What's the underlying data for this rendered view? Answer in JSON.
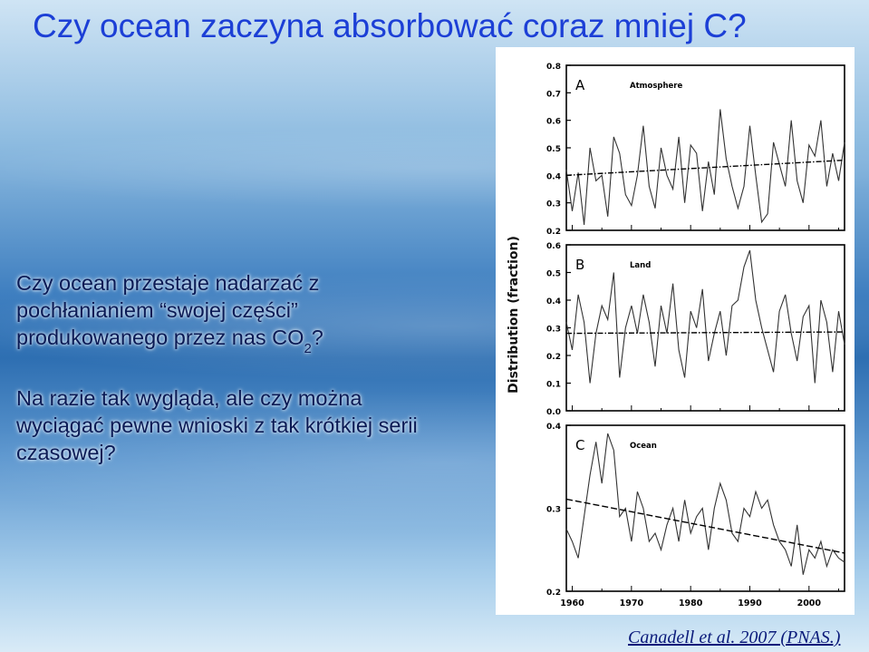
{
  "slide": {
    "title": "Czy ocean zaczyna absorbować coraz mniej C?",
    "paragraph1": {
      "text": "Czy ocean przestaje nadarzać z pochłanianiem “swojej części” produkowanego przez nas CO",
      "subscript": "2",
      "tail": "?"
    },
    "paragraph2": "Na razie tak wygląda, ale czy można wyciągać pewne wnioski z tak krótkiej serii czasowej?",
    "citation": "Canadell et al. 2007 (PNAS.)"
  },
  "chart_data": {
    "type": "line",
    "ylabel": "Distribution (fraction)",
    "x_ticks": [
      1960,
      1970,
      1980,
      1990,
      2000
    ],
    "x_range": [
      1959,
      2006
    ],
    "years": [
      1959,
      1960,
      1961,
      1962,
      1963,
      1964,
      1965,
      1966,
      1967,
      1968,
      1969,
      1970,
      1971,
      1972,
      1973,
      1974,
      1975,
      1976,
      1977,
      1978,
      1979,
      1980,
      1981,
      1982,
      1983,
      1984,
      1985,
      1986,
      1987,
      1988,
      1989,
      1990,
      1991,
      1992,
      1993,
      1994,
      1995,
      1996,
      1997,
      1998,
      1999,
      2000,
      2001,
      2002,
      2003,
      2004,
      2005,
      2006
    ],
    "panels": [
      {
        "letter": "A",
        "name": "Atmosphere",
        "ylim": [
          0.2,
          0.8
        ],
        "y_ticks": [
          0.2,
          0.3,
          0.4,
          0.5,
          0.6,
          0.7,
          0.8
        ],
        "y_tick_labels": [
          "0.2",
          "0.3",
          "0.4",
          "0.5",
          "0.6",
          "0.7",
          "0.8"
        ],
        "values": [
          0.42,
          0.27,
          0.41,
          0.22,
          0.5,
          0.38,
          0.4,
          0.25,
          0.54,
          0.48,
          0.33,
          0.29,
          0.4,
          0.58,
          0.36,
          0.28,
          0.5,
          0.4,
          0.35,
          0.54,
          0.3,
          0.51,
          0.48,
          0.27,
          0.45,
          0.33,
          0.64,
          0.46,
          0.36,
          0.28,
          0.36,
          0.58,
          0.4,
          0.23,
          0.26,
          0.52,
          0.44,
          0.36,
          0.6,
          0.38,
          0.3,
          0.51,
          0.47,
          0.6,
          0.36,
          0.48,
          0.38,
          0.52
        ],
        "trend": [
          0.4,
          0.455
        ]
      },
      {
        "letter": "B",
        "name": "Land",
        "ylim": [
          0.0,
          0.6
        ],
        "y_ticks": [
          0.0,
          0.1,
          0.2,
          0.3,
          0.4,
          0.5,
          0.6
        ],
        "y_tick_labels": [
          "0.0",
          "0.1",
          "0.2",
          "0.3",
          "0.4",
          "0.5",
          "0.6"
        ],
        "values": [
          0.32,
          0.22,
          0.42,
          0.32,
          0.1,
          0.28,
          0.38,
          0.33,
          0.5,
          0.12,
          0.3,
          0.38,
          0.28,
          0.42,
          0.32,
          0.16,
          0.38,
          0.28,
          0.46,
          0.22,
          0.12,
          0.36,
          0.3,
          0.44,
          0.18,
          0.28,
          0.36,
          0.2,
          0.38,
          0.4,
          0.52,
          0.58,
          0.4,
          0.3,
          0.22,
          0.14,
          0.36,
          0.42,
          0.28,
          0.18,
          0.34,
          0.38,
          0.1,
          0.4,
          0.32,
          0.14,
          0.36,
          0.24
        ],
        "trend": [
          0.28,
          0.285
        ]
      },
      {
        "letter": "C",
        "name": "Ocean",
        "ylim": [
          0.2,
          0.4
        ],
        "y_ticks": [
          0.2,
          0.3,
          0.4
        ],
        "y_tick_labels": [
          "0.2",
          "0.3",
          "0.4"
        ],
        "values": [
          0.275,
          0.26,
          0.24,
          0.29,
          0.34,
          0.38,
          0.33,
          0.39,
          0.37,
          0.29,
          0.3,
          0.26,
          0.32,
          0.3,
          0.26,
          0.27,
          0.25,
          0.28,
          0.3,
          0.26,
          0.31,
          0.27,
          0.29,
          0.3,
          0.25,
          0.3,
          0.33,
          0.31,
          0.27,
          0.26,
          0.3,
          0.29,
          0.32,
          0.3,
          0.31,
          0.28,
          0.26,
          0.25,
          0.23,
          0.28,
          0.22,
          0.25,
          0.24,
          0.26,
          0.23,
          0.25,
          0.24,
          0.235
        ],
        "trend": [
          0.311,
          0.246
        ]
      }
    ]
  }
}
